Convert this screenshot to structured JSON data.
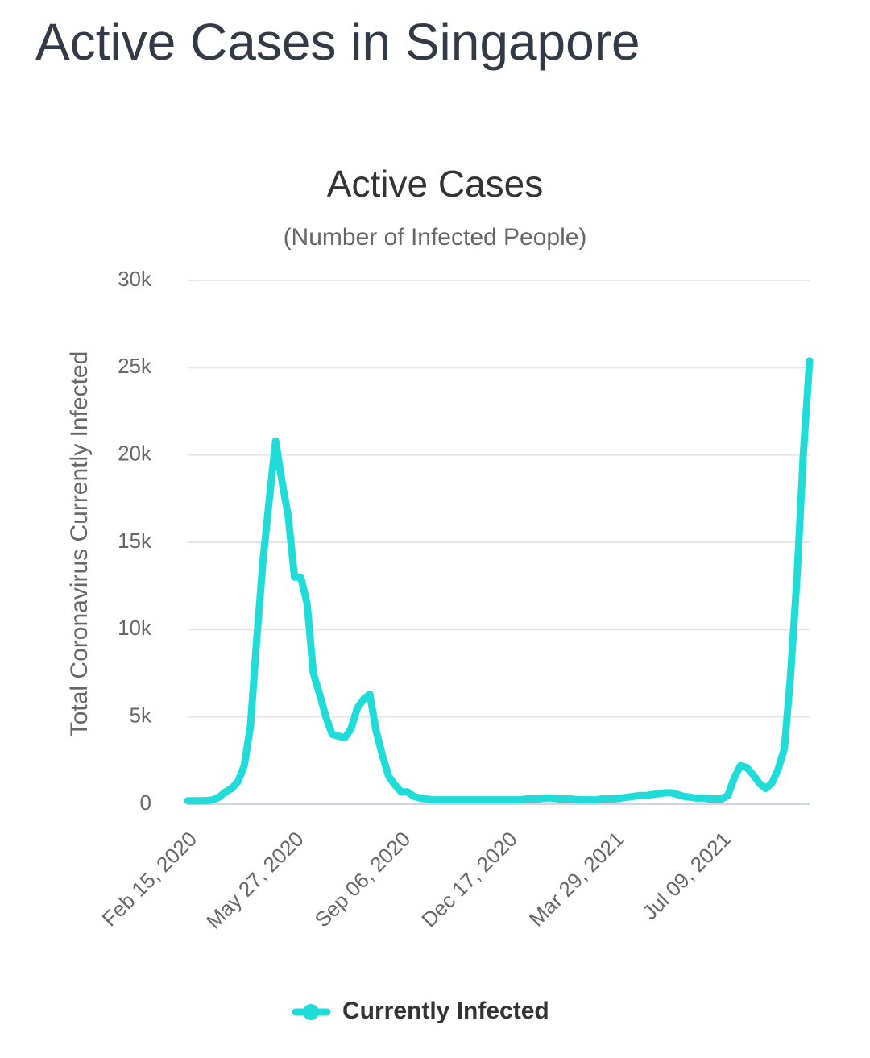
{
  "page_title": "Active Cases in Singapore",
  "chart_data": {
    "type": "line",
    "title": "Active Cases",
    "subtitle": "(Number of Infected People)",
    "y_axis_label": "Total Coronavirus Currently Infected",
    "categories": [
      "Feb 15, 2020",
      null,
      null,
      null,
      null,
      null,
      null,
      null,
      null,
      null,
      null,
      null,
      null,
      null,
      null,
      null,
      null,
      "May 27, 2020",
      null,
      null,
      null,
      null,
      null,
      null,
      null,
      null,
      null,
      null,
      null,
      null,
      null,
      null,
      null,
      null,
      "Sep 06, 2020",
      null,
      null,
      null,
      null,
      null,
      null,
      null,
      null,
      null,
      null,
      null,
      null,
      null,
      null,
      null,
      null,
      "Dec 17, 2020",
      null,
      null,
      null,
      null,
      null,
      null,
      null,
      null,
      null,
      null,
      null,
      null,
      null,
      null,
      null,
      null,
      "Mar 29, 2021",
      null,
      null,
      null,
      null,
      null,
      null,
      null,
      null,
      null,
      null,
      null,
      null,
      null,
      null,
      null,
      null,
      "Jul 09, 2021",
      null,
      null,
      null,
      null,
      null,
      null,
      null,
      null,
      null,
      null,
      null,
      null,
      null,
      null
    ],
    "series": [
      {
        "name": "Currently Infected",
        "color": "#1fdcd8",
        "values": [
          200,
          200,
          200,
          200,
          250,
          400,
          700,
          900,
          1300,
          2200,
          4500,
          9500,
          14000,
          17500,
          20800,
          18500,
          16500,
          13000,
          13000,
          11500,
          7500,
          6300,
          5000,
          4000,
          3900,
          3800,
          4300,
          5500,
          6000,
          6300,
          4200,
          2800,
          1600,
          1100,
          700,
          700,
          450,
          350,
          300,
          250,
          250,
          250,
          250,
          250,
          250,
          250,
          250,
          250,
          250,
          250,
          250,
          250,
          250,
          250,
          300,
          300,
          300,
          350,
          350,
          300,
          300,
          300,
          250,
          250,
          250,
          250,
          300,
          300,
          300,
          350,
          400,
          450,
          500,
          500,
          550,
          600,
          650,
          650,
          550,
          450,
          400,
          350,
          350,
          300,
          300,
          300,
          500,
          1500,
          2200,
          2100,
          1700,
          1200,
          900,
          1200,
          2000,
          3200,
          7500,
          13000,
          20000,
          25400
        ]
      }
    ],
    "ylim": [
      0,
      30000
    ],
    "yticks": [
      0,
      {
        "value": 5000,
        "label": "5k"
      },
      {
        "value": 10000,
        "label": "10k"
      },
      {
        "value": 15000,
        "label": "15k"
      },
      {
        "value": 20000,
        "label": "20k"
      },
      {
        "value": 25000,
        "label": "25k"
      },
      {
        "value": 30000,
        "label": "30k"
      }
    ],
    "grid": true,
    "legend": "bottom"
  }
}
